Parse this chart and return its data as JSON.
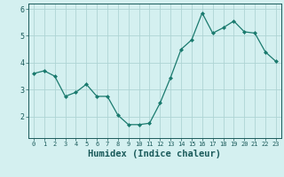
{
  "x": [
    0,
    1,
    2,
    3,
    4,
    5,
    6,
    7,
    8,
    9,
    10,
    11,
    12,
    13,
    14,
    15,
    16,
    17,
    18,
    19,
    20,
    21,
    22,
    23
  ],
  "y": [
    3.6,
    3.7,
    3.5,
    2.75,
    2.9,
    3.2,
    2.75,
    2.75,
    2.05,
    1.7,
    1.7,
    1.75,
    2.5,
    3.45,
    4.5,
    4.85,
    5.85,
    5.1,
    5.3,
    5.55,
    5.15,
    5.1,
    4.4,
    4.05
  ],
  "line_color": "#1a7a6e",
  "marker": "D",
  "marker_size": 2.0,
  "bg_color": "#d4f0f0",
  "grid_color": "#aed4d4",
  "xlabel": "Humidex (Indice chaleur)",
  "xlabel_fontsize": 7.5,
  "tick_color": "#1a5a5a",
  "ylim": [
    1.2,
    6.2
  ],
  "xlim": [
    -0.5,
    23.5
  ],
  "yticks": [
    2,
    3,
    4,
    5,
    6
  ],
  "ytick_labels": [
    "2",
    "3",
    "4",
    "5",
    "6"
  ],
  "xticks": [
    0,
    1,
    2,
    3,
    4,
    5,
    6,
    7,
    8,
    9,
    10,
    11,
    12,
    13,
    14,
    15,
    16,
    17,
    18,
    19,
    20,
    21,
    22,
    23
  ],
  "xtick_labels": [
    "0",
    "1",
    "2",
    "3",
    "4",
    "5",
    "6",
    "7",
    "8",
    "9",
    "10",
    "11",
    "12",
    "13",
    "14",
    "15",
    "16",
    "17",
    "18",
    "19",
    "20",
    "21",
    "22",
    "23"
  ]
}
